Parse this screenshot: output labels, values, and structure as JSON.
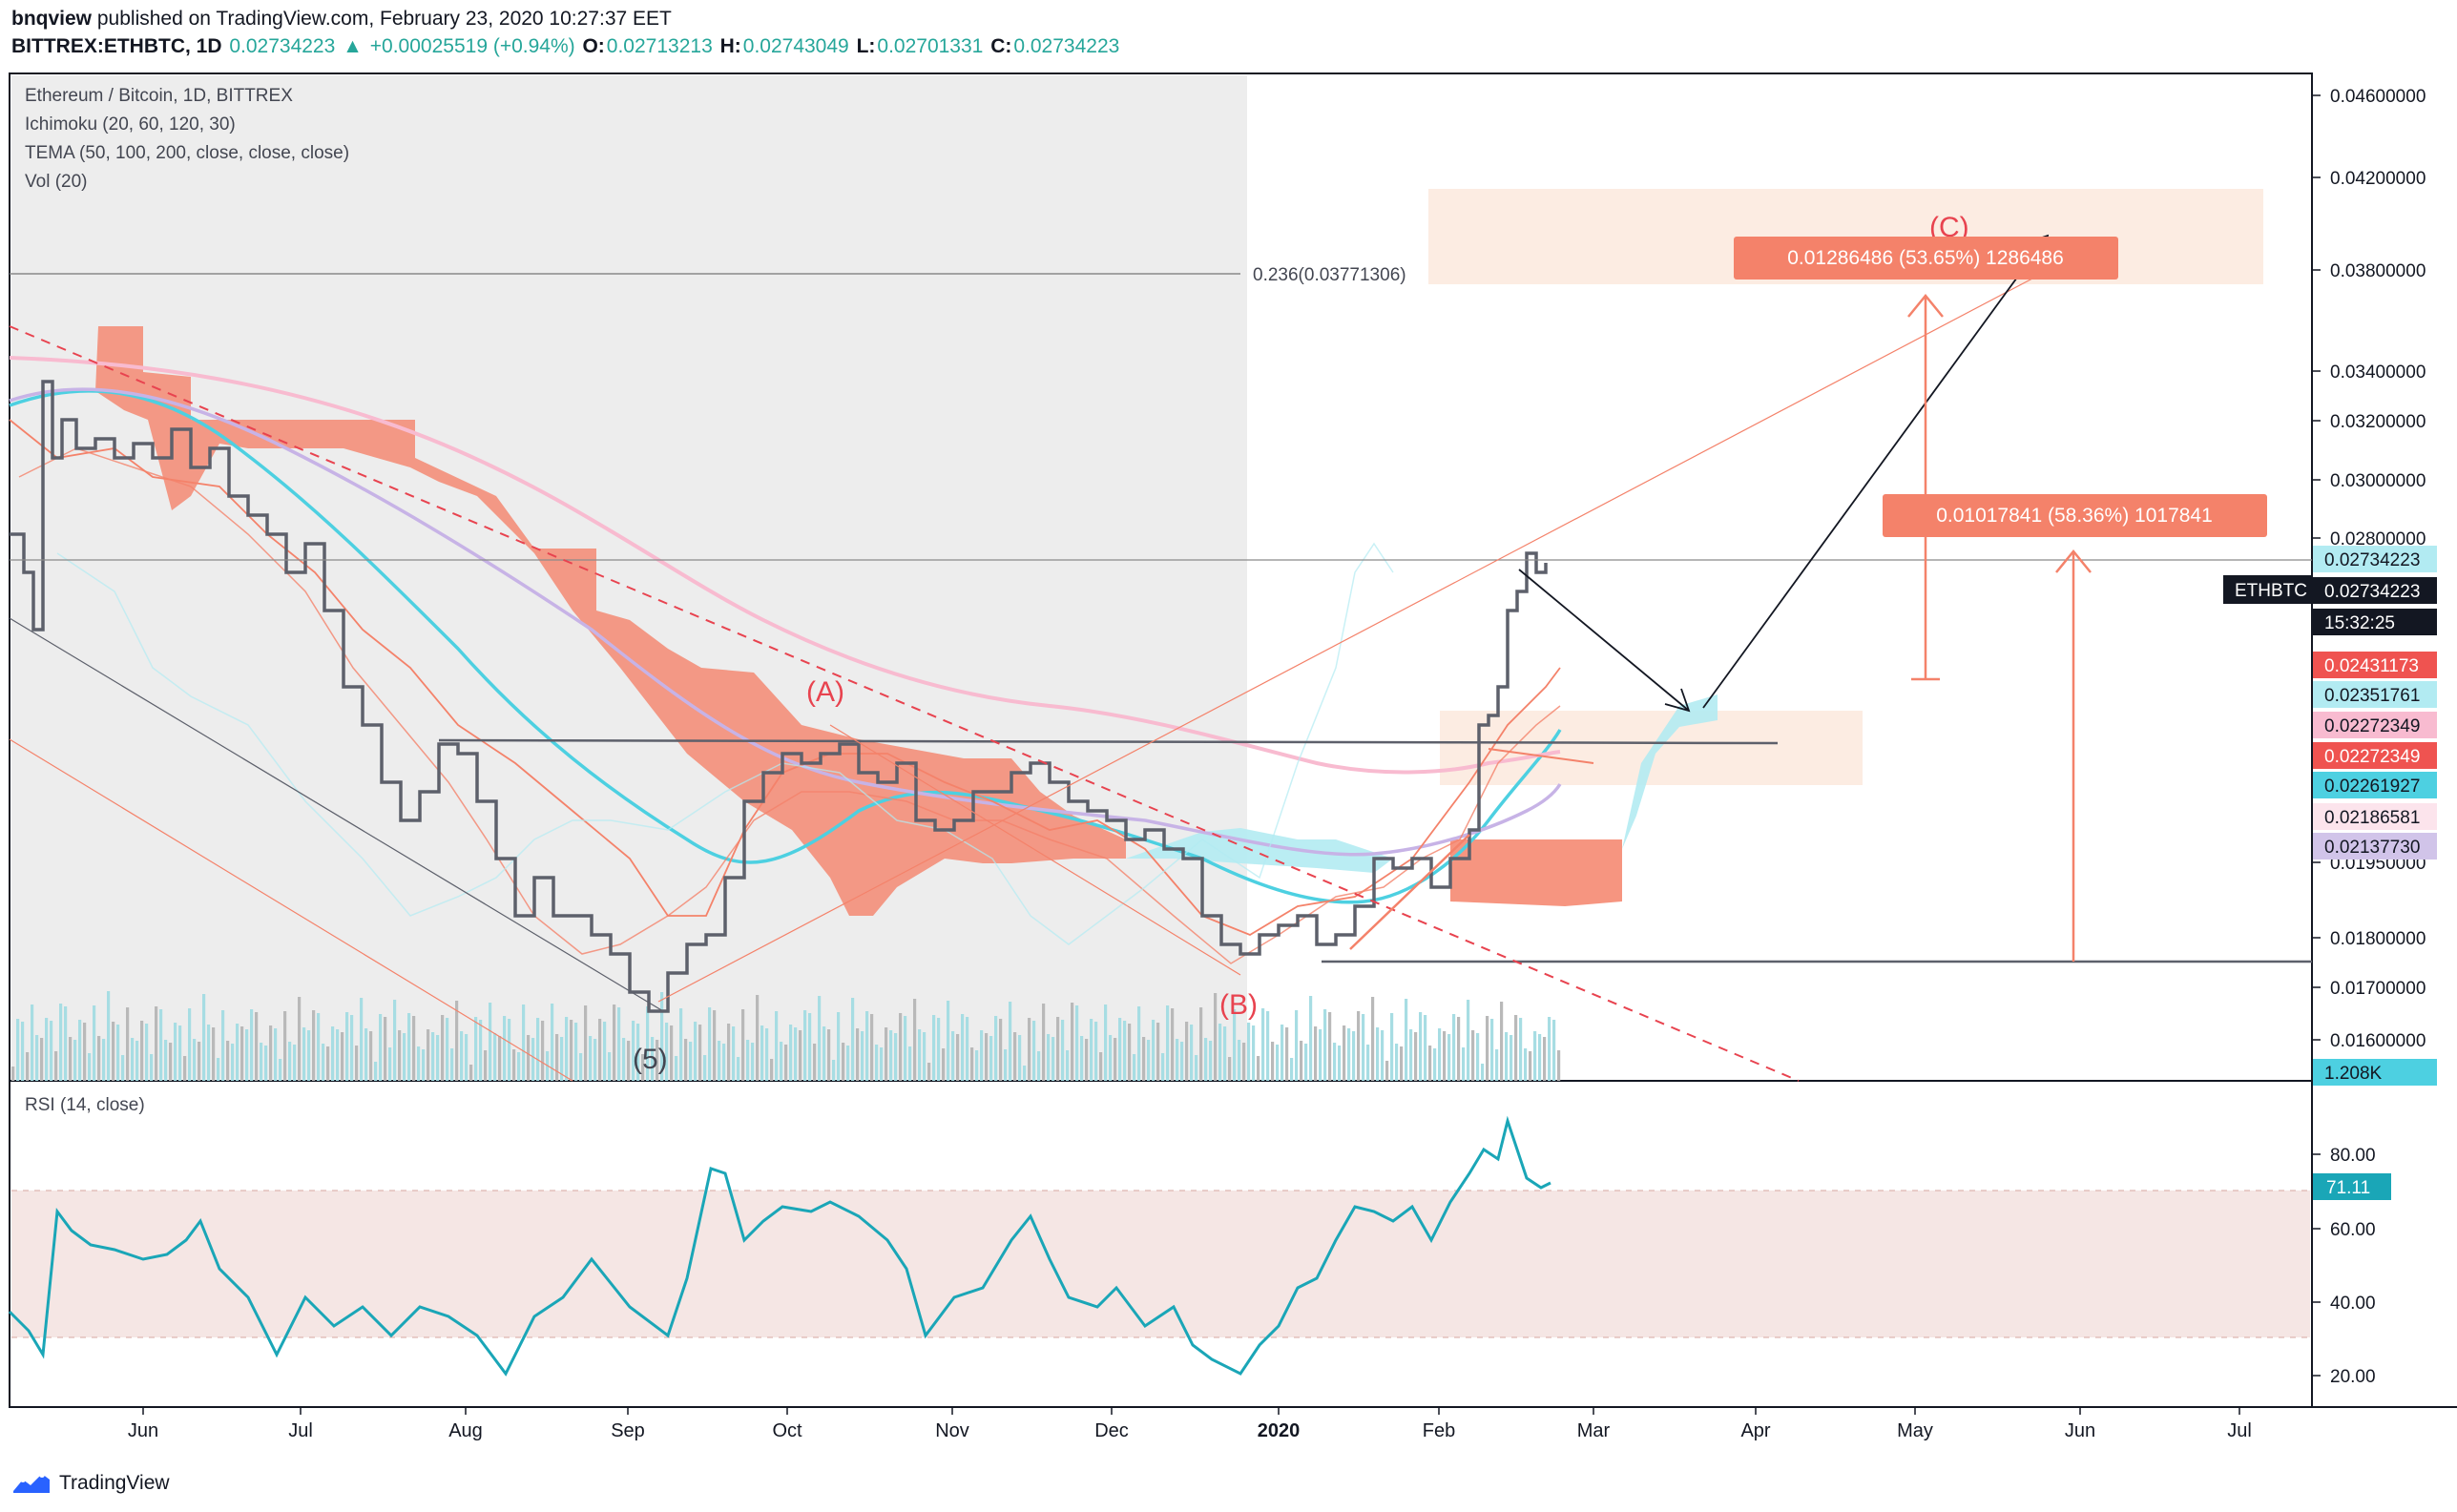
{
  "header": {
    "publisher": "bnqview",
    "published_text": "published on TradingView.com, February 23, 2020 10:27:37 EET",
    "symbol_line": "BITTREX:ETHBTC, 1D",
    "last": "0.02734223",
    "change": "+0.00025519 (+0.94%)",
    "open_label": "O:",
    "open": "0.02713213",
    "high_label": "H:",
    "high": "0.02743049",
    "low_label": "L:",
    "low": "0.02701331",
    "close_label": "C:",
    "close": "0.02734223"
  },
  "legend": {
    "title": "Ethereum / Bitcoin, 1D, BITTREX",
    "ichimoku": "Ichimoku (20, 60, 120, 30)",
    "tema": "TEMA (50, 100, 200, close, close, close)",
    "vol": "Vol (20)",
    "rsi": "RSI (14, close)"
  },
  "price_axis": {
    "ticks": [
      "0.04600000",
      "0.04200000",
      "0.03800000",
      "0.03400000",
      "0.03200000",
      "0.03000000",
      "0.02800000",
      "0.01950000",
      "0.01800000",
      "0.01700000",
      "0.01600000"
    ],
    "labels": [
      {
        "text": "0.02734223",
        "bg": "#b2ebf2",
        "fg": "#131722"
      },
      {
        "text": "0.02734223",
        "bg": "#131722",
        "fg": "#ffffff"
      },
      {
        "text": "15:32:25",
        "bg": "#131722",
        "fg": "#ffffff"
      },
      {
        "text": "0.02431173",
        "bg": "#ef5350",
        "fg": "#ffffff"
      },
      {
        "text": "0.02351761",
        "bg": "#b2ebf2",
        "fg": "#131722"
      },
      {
        "text": "0.02272349",
        "bg": "#f8bbd0",
        "fg": "#131722"
      },
      {
        "text": "0.02272349",
        "bg": "#ef5350",
        "fg": "#ffffff"
      },
      {
        "text": "0.02261927",
        "bg": "#4dd0e1",
        "fg": "#131722"
      },
      {
        "text": "0.02186581",
        "bg": "#fce4ec",
        "fg": "#131722"
      },
      {
        "text": "0.02137730",
        "bg": "#d1c4e9",
        "fg": "#131722"
      },
      {
        "text": "1.208K",
        "bg": "#4dd0e1",
        "fg": "#131722"
      }
    ],
    "symbol_tag": "ETHBTC"
  },
  "rsi_axis": {
    "ticks": [
      "80.00",
      "60.00",
      "40.00",
      "20.00"
    ],
    "current": "71.11"
  },
  "time_axis": {
    "labels": [
      "Jun",
      "Jul",
      "Aug",
      "Sep",
      "Oct",
      "Nov",
      "Dec",
      "2020",
      "Feb",
      "Mar",
      "Apr",
      "May",
      "Jun",
      "Jul"
    ]
  },
  "annotations": {
    "fib": "0.236(0.03771306)",
    "wave_a": "(A)",
    "wave_b": "(B)",
    "wave_c": "(C)",
    "wave_5": "(5)",
    "measure_upper": "0.01286486 (53.65%) 1286486",
    "measure_lower": "0.01017841 (58.36%) 1017841"
  },
  "colors": {
    "price_line": "#5d606b",
    "cloud": "#f4826a",
    "tema_cyan": "#4dd0e1",
    "tema_pink": "#f8bbd0",
    "tema_purple": "#c7b3e6",
    "rsi": "#1aa6b7",
    "rsi_band": "#f5e6e4"
  },
  "chart_data": {
    "type": "line",
    "title": "Ethereum / Bitcoin, 1D, BITTREX",
    "x": [
      "May",
      "Jun",
      "Jul",
      "Aug",
      "Sep",
      "Oct",
      "Nov",
      "Dec",
      "2020",
      "Feb"
    ],
    "series": [
      {
        "name": "ETHBTC",
        "values": [
          0.0285,
          0.032,
          0.03,
          0.0225,
          0.0168,
          0.0222,
          0.0205,
          0.0205,
          0.0182,
          0.0273
        ]
      },
      {
        "name": "RSI (14, close)",
        "values": [
          37,
          62,
          48,
          32,
          28,
          70,
          44,
          50,
          22,
          71
        ]
      }
    ]
  },
  "footer": {
    "brand": "TradingView"
  }
}
